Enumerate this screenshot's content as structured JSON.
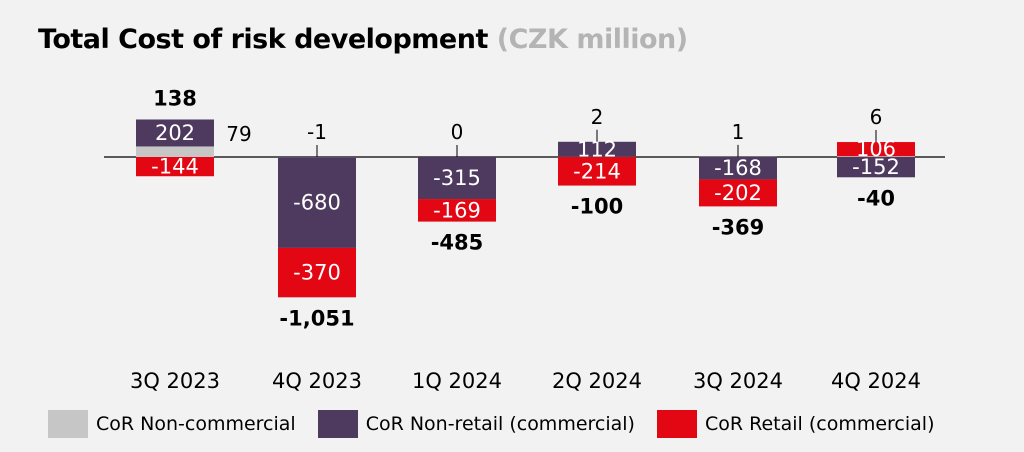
{
  "title": "Total Cost of risk development",
  "unit": "(CZK million)",
  "colors": {
    "non_commercial": "#c6c6c6",
    "non_retail": "#4f3a5f",
    "retail": "#e30613"
  },
  "chart_data": {
    "type": "bar",
    "stacked": true,
    "title": "Total Cost of risk development",
    "subtitle": "(CZK million)",
    "categories": [
      "3Q 2023",
      "4Q 2023",
      "1Q 2024",
      "2Q 2024",
      "3Q 2024",
      "4Q 2024"
    ],
    "series": [
      {
        "name": "CoR Non-commercial",
        "values": [
          79,
          -1,
          0,
          2,
          1,
          6
        ]
      },
      {
        "name": "CoR Non-retail (commercial)",
        "values": [
          202,
          -680,
          -315,
          112,
          -168,
          -152
        ]
      },
      {
        "name": "CoR Retail (commercial)",
        "values": [
          -144,
          -370,
          -169,
          -214,
          -202,
          106
        ]
      }
    ],
    "totals": [
      138,
      -1051,
      -485,
      -100,
      -369,
      -40
    ],
    "value_labels": {
      "non_commercial": [
        "79",
        "-1",
        "0",
        "2",
        "1",
        "6"
      ],
      "non_retail": [
        "202",
        "-680",
        "-315",
        "112",
        "-168",
        "-152"
      ],
      "retail": [
        "-144",
        "-370",
        "-169",
        "-214",
        "-202",
        "106"
      ],
      "totals": [
        "138",
        "-1,051",
        "-485",
        "-100",
        "-369",
        "-40"
      ]
    },
    "legend": [
      "CoR Non-commercial",
      "CoR Non-retail (commercial)",
      "CoR Retail (commercial)"
    ],
    "legend_position": "bottom",
    "grid": false
  }
}
